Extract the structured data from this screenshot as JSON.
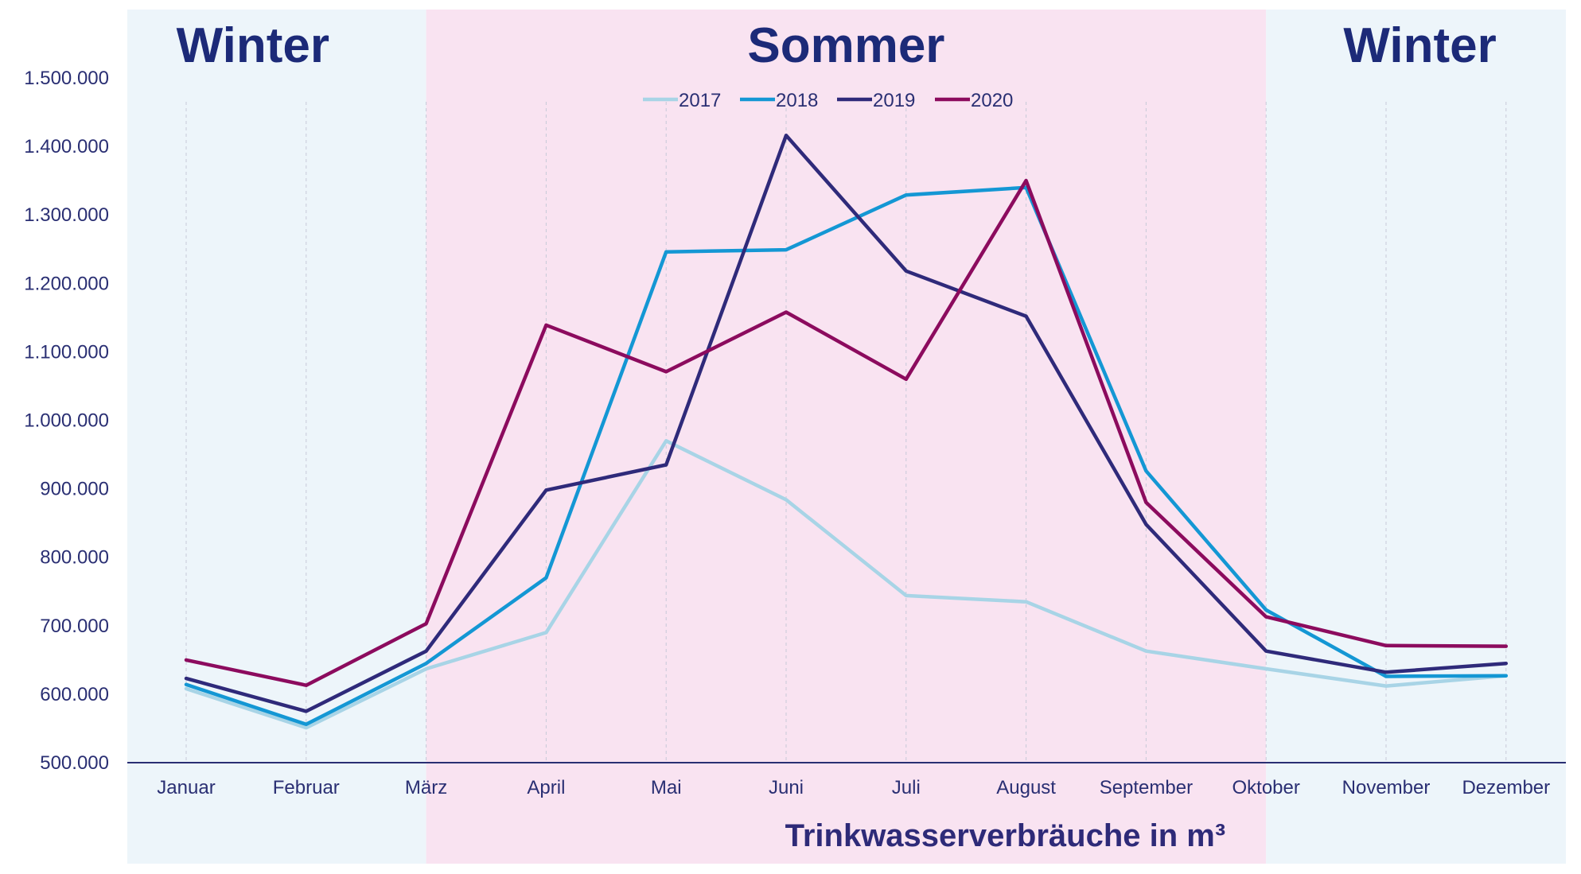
{
  "chart_data": {
    "type": "line",
    "xlabel": "Trinkwasserverbräuche in m³",
    "ylabel": "",
    "ylim": [
      500000,
      1500000
    ],
    "yticks": [
      500000,
      600000,
      700000,
      800000,
      900000,
      1000000,
      1100000,
      1200000,
      1300000,
      1400000,
      1500000
    ],
    "ytick_labels": [
      "500.000",
      "600.000",
      "700.000",
      "800.000",
      "900.000",
      "1.000.000",
      "1.100.000",
      "1.200.000",
      "1.300.000",
      "1.400.000",
      "1.500.000"
    ],
    "categories": [
      "Januar",
      "Februar",
      "März",
      "April",
      "Mai",
      "Juni",
      "Juli",
      "August",
      "September",
      "Oktober",
      "November",
      "Dezember"
    ],
    "seasons": [
      {
        "label": "Winter",
        "from": "Januar",
        "to": "März",
        "color": "#edf5fa"
      },
      {
        "label": "Sommer",
        "from": "März",
        "to": "Oktober",
        "color": "#f9e3f1"
      },
      {
        "label": "Winter",
        "from": "Oktober",
        "to": "Dezember",
        "color": "#edf5fa"
      }
    ],
    "legend_position": "top-center",
    "grid": "vertical dashed",
    "series": [
      {
        "name": "2017",
        "color": "#a8d4e6",
        "values": [
          608000,
          551000,
          637000,
          690000,
          970000,
          884000,
          744000,
          735000,
          663000,
          637000,
          612000,
          627000
        ]
      },
      {
        "name": "2018",
        "color": "#1497d4",
        "values": [
          614000,
          556000,
          645000,
          770000,
          1246000,
          1249000,
          1329000,
          1340000,
          926000,
          723000,
          626000,
          627000
        ]
      },
      {
        "name": "2019",
        "color": "#2f2a7a",
        "values": [
          623000,
          575000,
          663000,
          898000,
          935000,
          1416000,
          1218000,
          1152000,
          848000,
          663000,
          632000,
          645000
        ]
      },
      {
        "name": "2020",
        "color": "#8c0b5e",
        "values": [
          650000,
          613000,
          703000,
          1139000,
          1071000,
          1158000,
          1060000,
          1350000,
          880000,
          713000,
          671000,
          670000
        ]
      }
    ]
  }
}
